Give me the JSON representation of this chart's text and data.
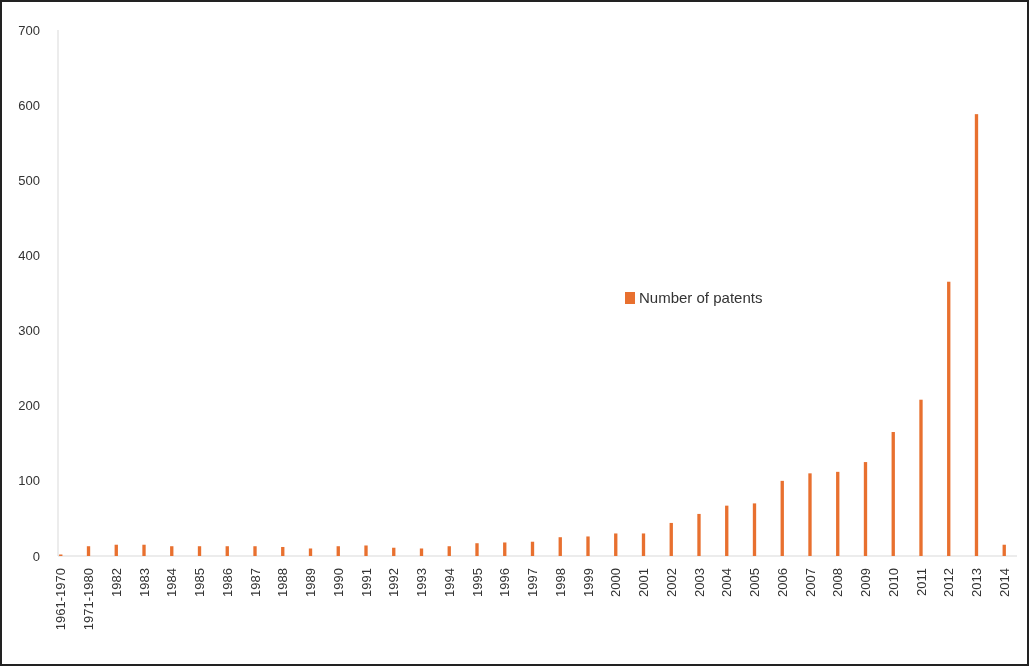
{
  "chart_data": {
    "type": "bar",
    "categories": [
      "1961-1970",
      "1971-1980",
      "1982",
      "1983",
      "1984",
      "1985",
      "1986",
      "1987",
      "1988",
      "1989",
      "1990",
      "1991",
      "1992",
      "1993",
      "1994",
      "1995",
      "1996",
      "1997",
      "1998",
      "1999",
      "2000",
      "2001",
      "2002",
      "2003",
      "2004",
      "2005",
      "2006",
      "2007",
      "2008",
      "2009",
      "2010",
      "2011",
      "2012",
      "2013",
      "2014"
    ],
    "series": [
      {
        "name": "Number of patents",
        "color": "#e8702f",
        "values": [
          2,
          13,
          15,
          15,
          13,
          13,
          13,
          13,
          12,
          10,
          13,
          14,
          11,
          10,
          13,
          17,
          18,
          19,
          25,
          26,
          30,
          30,
          44,
          56,
          67,
          70,
          100,
          110,
          112,
          125,
          165,
          208,
          365,
          588,
          15
        ]
      }
    ],
    "ylim": [
      0,
      700
    ],
    "yticks": [
      0,
      100,
      200,
      300,
      400,
      500,
      600,
      700
    ],
    "grid": false,
    "legend": "right"
  }
}
